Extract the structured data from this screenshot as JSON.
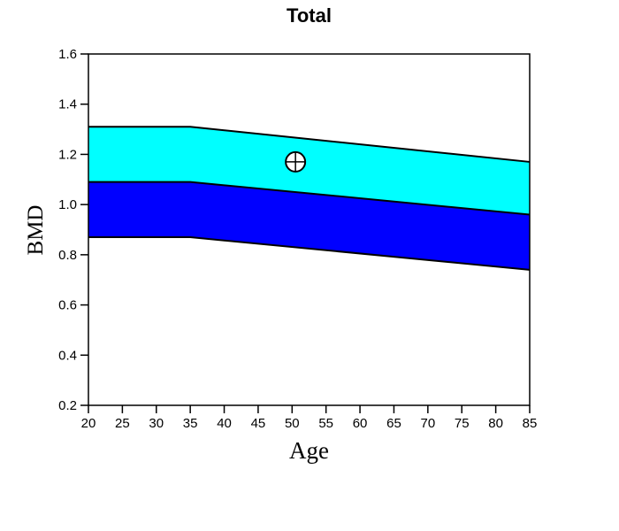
{
  "chart_data": {
    "type": "area",
    "title": "Total",
    "xlabel": "Age",
    "ylabel": "BMD",
    "xlim": [
      20,
      85
    ],
    "ylim": [
      0.2,
      1.6
    ],
    "x_ticks": [
      20,
      25,
      30,
      35,
      40,
      45,
      50,
      55,
      60,
      65,
      70,
      75,
      80,
      85
    ],
    "y_ticks": [
      0.2,
      0.4,
      0.6,
      0.8,
      1.0,
      1.2,
      1.4,
      1.6
    ],
    "grid": false,
    "legend": "none",
    "knot_ages": [
      20,
      35,
      85
    ],
    "curves": {
      "upper": [
        1.31,
        1.31,
        1.17
      ],
      "middle": [
        1.09,
        1.09,
        0.96
      ],
      "lower": [
        0.87,
        0.87,
        0.74
      ]
    },
    "bands": [
      {
        "name": "upper-reference-band",
        "between": [
          "upper",
          "middle"
        ],
        "color": "#00FFFF"
      },
      {
        "name": "lower-reference-band",
        "between": [
          "middle",
          "lower"
        ],
        "color": "#0000FF"
      }
    ],
    "marker": {
      "age": 50.5,
      "bmd": 1.17,
      "style": "circle-cross"
    },
    "colors": {
      "line": "#000000",
      "marker_fill": "#FFFFFF",
      "background": "#FFFFFF"
    }
  }
}
